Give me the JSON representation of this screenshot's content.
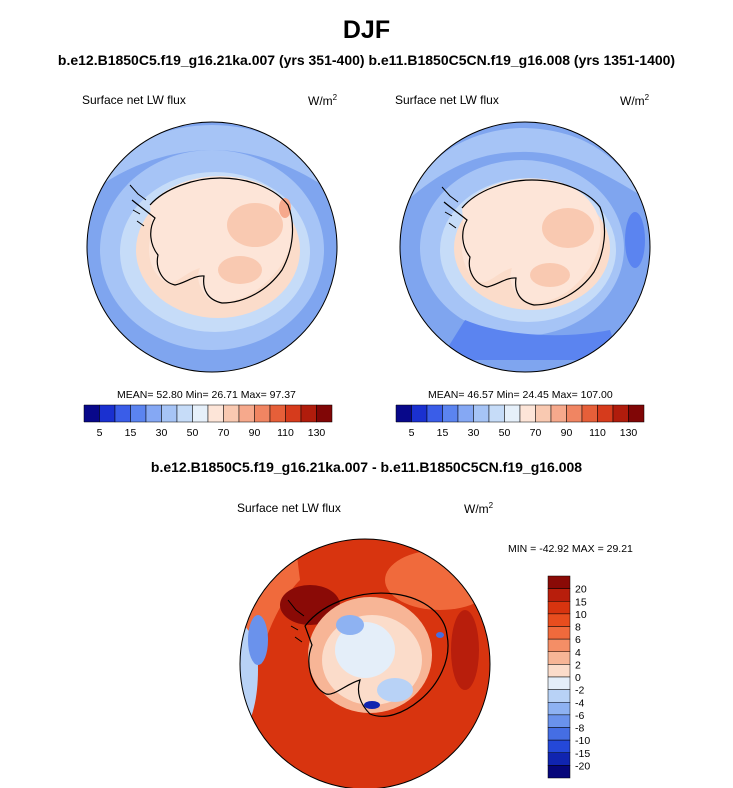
{
  "figure": {
    "title": "DJF",
    "subtitle": "b.e12.B1850C5.f19_g16.21ka.007 (yrs 351-400) b.e11.B1850C5CN.f19_g16.008 (yrs 1351-1400)",
    "diff_title": "b.e12.B1850C5.f19_g16.21ka.007 - b.e11.B1850C5CN.f19_g16.008"
  },
  "panels": {
    "left": {
      "variable": "Surface net LW flux",
      "units": "W/m",
      "units_exp": "2",
      "stats": "MEAN=  52.80  Min=  26.71  Max=  97.37"
    },
    "right": {
      "variable": "Surface net LW flux",
      "units": "W/m",
      "units_exp": "2",
      "stats": "MEAN=  46.57  Min=  24.45  Max= 107.00"
    },
    "diff": {
      "variable": "Surface net LW flux",
      "units": "W/m",
      "units_exp": "2",
      "stats": "MIN = -42.92 MAX =  29.21"
    }
  },
  "chart_data": [
    {
      "type": "heatmap",
      "title": "Surface net LW flux (b.e12.B1850C5.f19_g16.21ka.007)",
      "projection": "south polar stereographic",
      "units": "W/m^2",
      "mean": 52.8,
      "min": 26.71,
      "max": 97.37,
      "colorbar_levels": [
        5,
        10,
        15,
        20,
        30,
        40,
        50,
        60,
        70,
        80,
        90,
        100,
        110,
        120,
        130
      ],
      "colorbar_tick_labels": [
        "5",
        "15",
        "30",
        "50",
        "70",
        "90",
        "110",
        "130"
      ],
      "colors": [
        "#08088a",
        "#1a30d0",
        "#3a5de8",
        "#5b84f0",
        "#85a8f4",
        "#a6c4f6",
        "#c6dcf8",
        "#e6f0fa",
        "#fde5d8",
        "#f9c9b1",
        "#f6a98c",
        "#f08562",
        "#e65f39",
        "#d63b1c",
        "#b01c0c",
        "#800606"
      ]
    },
    {
      "type": "heatmap",
      "title": "Surface net LW flux (b.e11.B1850C5CN.f19_g16.008)",
      "projection": "south polar stereographic",
      "units": "W/m^2",
      "mean": 46.57,
      "min": 24.45,
      "max": 107.0,
      "colorbar_levels": [
        5,
        10,
        15,
        20,
        30,
        40,
        50,
        60,
        70,
        80,
        90,
        100,
        110,
        120,
        130
      ],
      "colorbar_tick_labels": [
        "5",
        "15",
        "30",
        "50",
        "70",
        "90",
        "110",
        "130"
      ],
      "colors": [
        "#08088a",
        "#1a30d0",
        "#3a5de8",
        "#5b84f0",
        "#85a8f4",
        "#a6c4f6",
        "#c6dcf8",
        "#e6f0fa",
        "#fde5d8",
        "#f9c9b1",
        "#f6a98c",
        "#f08562",
        "#e65f39",
        "#d63b1c",
        "#b01c0c",
        "#800606"
      ]
    },
    {
      "type": "heatmap",
      "title": "Surface net LW flux difference",
      "projection": "south polar stereographic",
      "units": "W/m^2",
      "min": -42.92,
      "max": 29.21,
      "colorbar_levels": [
        20,
        15,
        10,
        8,
        6,
        4,
        2,
        0,
        -2,
        -4,
        -6,
        -8,
        -10,
        -15,
        -20
      ],
      "colorbar_tick_labels": [
        "20",
        "15",
        "10",
        "8",
        "6",
        "4",
        "2",
        "0",
        "-2",
        "-4",
        "-6",
        "-8",
        "-10",
        "-15",
        "-20"
      ],
      "colors": [
        "#8a0a06",
        "#b81e0c",
        "#d8340f",
        "#e84d1e",
        "#f06a3c",
        "#f48e66",
        "#f7b596",
        "#fbdcca",
        "#e4eef9",
        "#b8d2f6",
        "#8eb2f2",
        "#6a92ec",
        "#456ee4",
        "#2448d8",
        "#1024b0",
        "#06067a"
      ]
    }
  ]
}
